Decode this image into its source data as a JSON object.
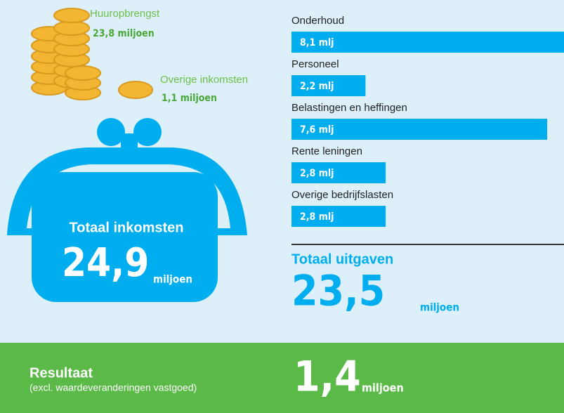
{
  "chart_data": {
    "type": "bar",
    "categories": [
      "Onderhoud",
      "Personeel",
      "Belastingen en heffingen",
      "Rente leningen",
      "Overige bedrijfslasten"
    ],
    "values": [
      8.1,
      2.2,
      7.6,
      2.8,
      2.8
    ],
    "value_labels": [
      "8,1 mlj",
      "2,2 mlj",
      "7,6 mlj",
      "2,8 mlj",
      "2,8 mlj"
    ],
    "color": "#00aeef"
  },
  "income": {
    "items": [
      {
        "label": "Huuropbrengst",
        "amount": "23,8 miljoen"
      },
      {
        "label": "Overige inkomsten",
        "amount": "1,1 miljoen"
      }
    ],
    "total_label": "Totaal inkomsten",
    "total_value": "24,9",
    "total_unit": "miljoen"
  },
  "expenses": {
    "total_label": "Totaal uitgaven",
    "total_value": "23,5",
    "total_unit": "miljoen"
  },
  "result": {
    "title": "Resultaat",
    "note": "(excl. waardeveranderingen vastgoed)",
    "value": "1,4",
    "unit": "miljoen"
  }
}
